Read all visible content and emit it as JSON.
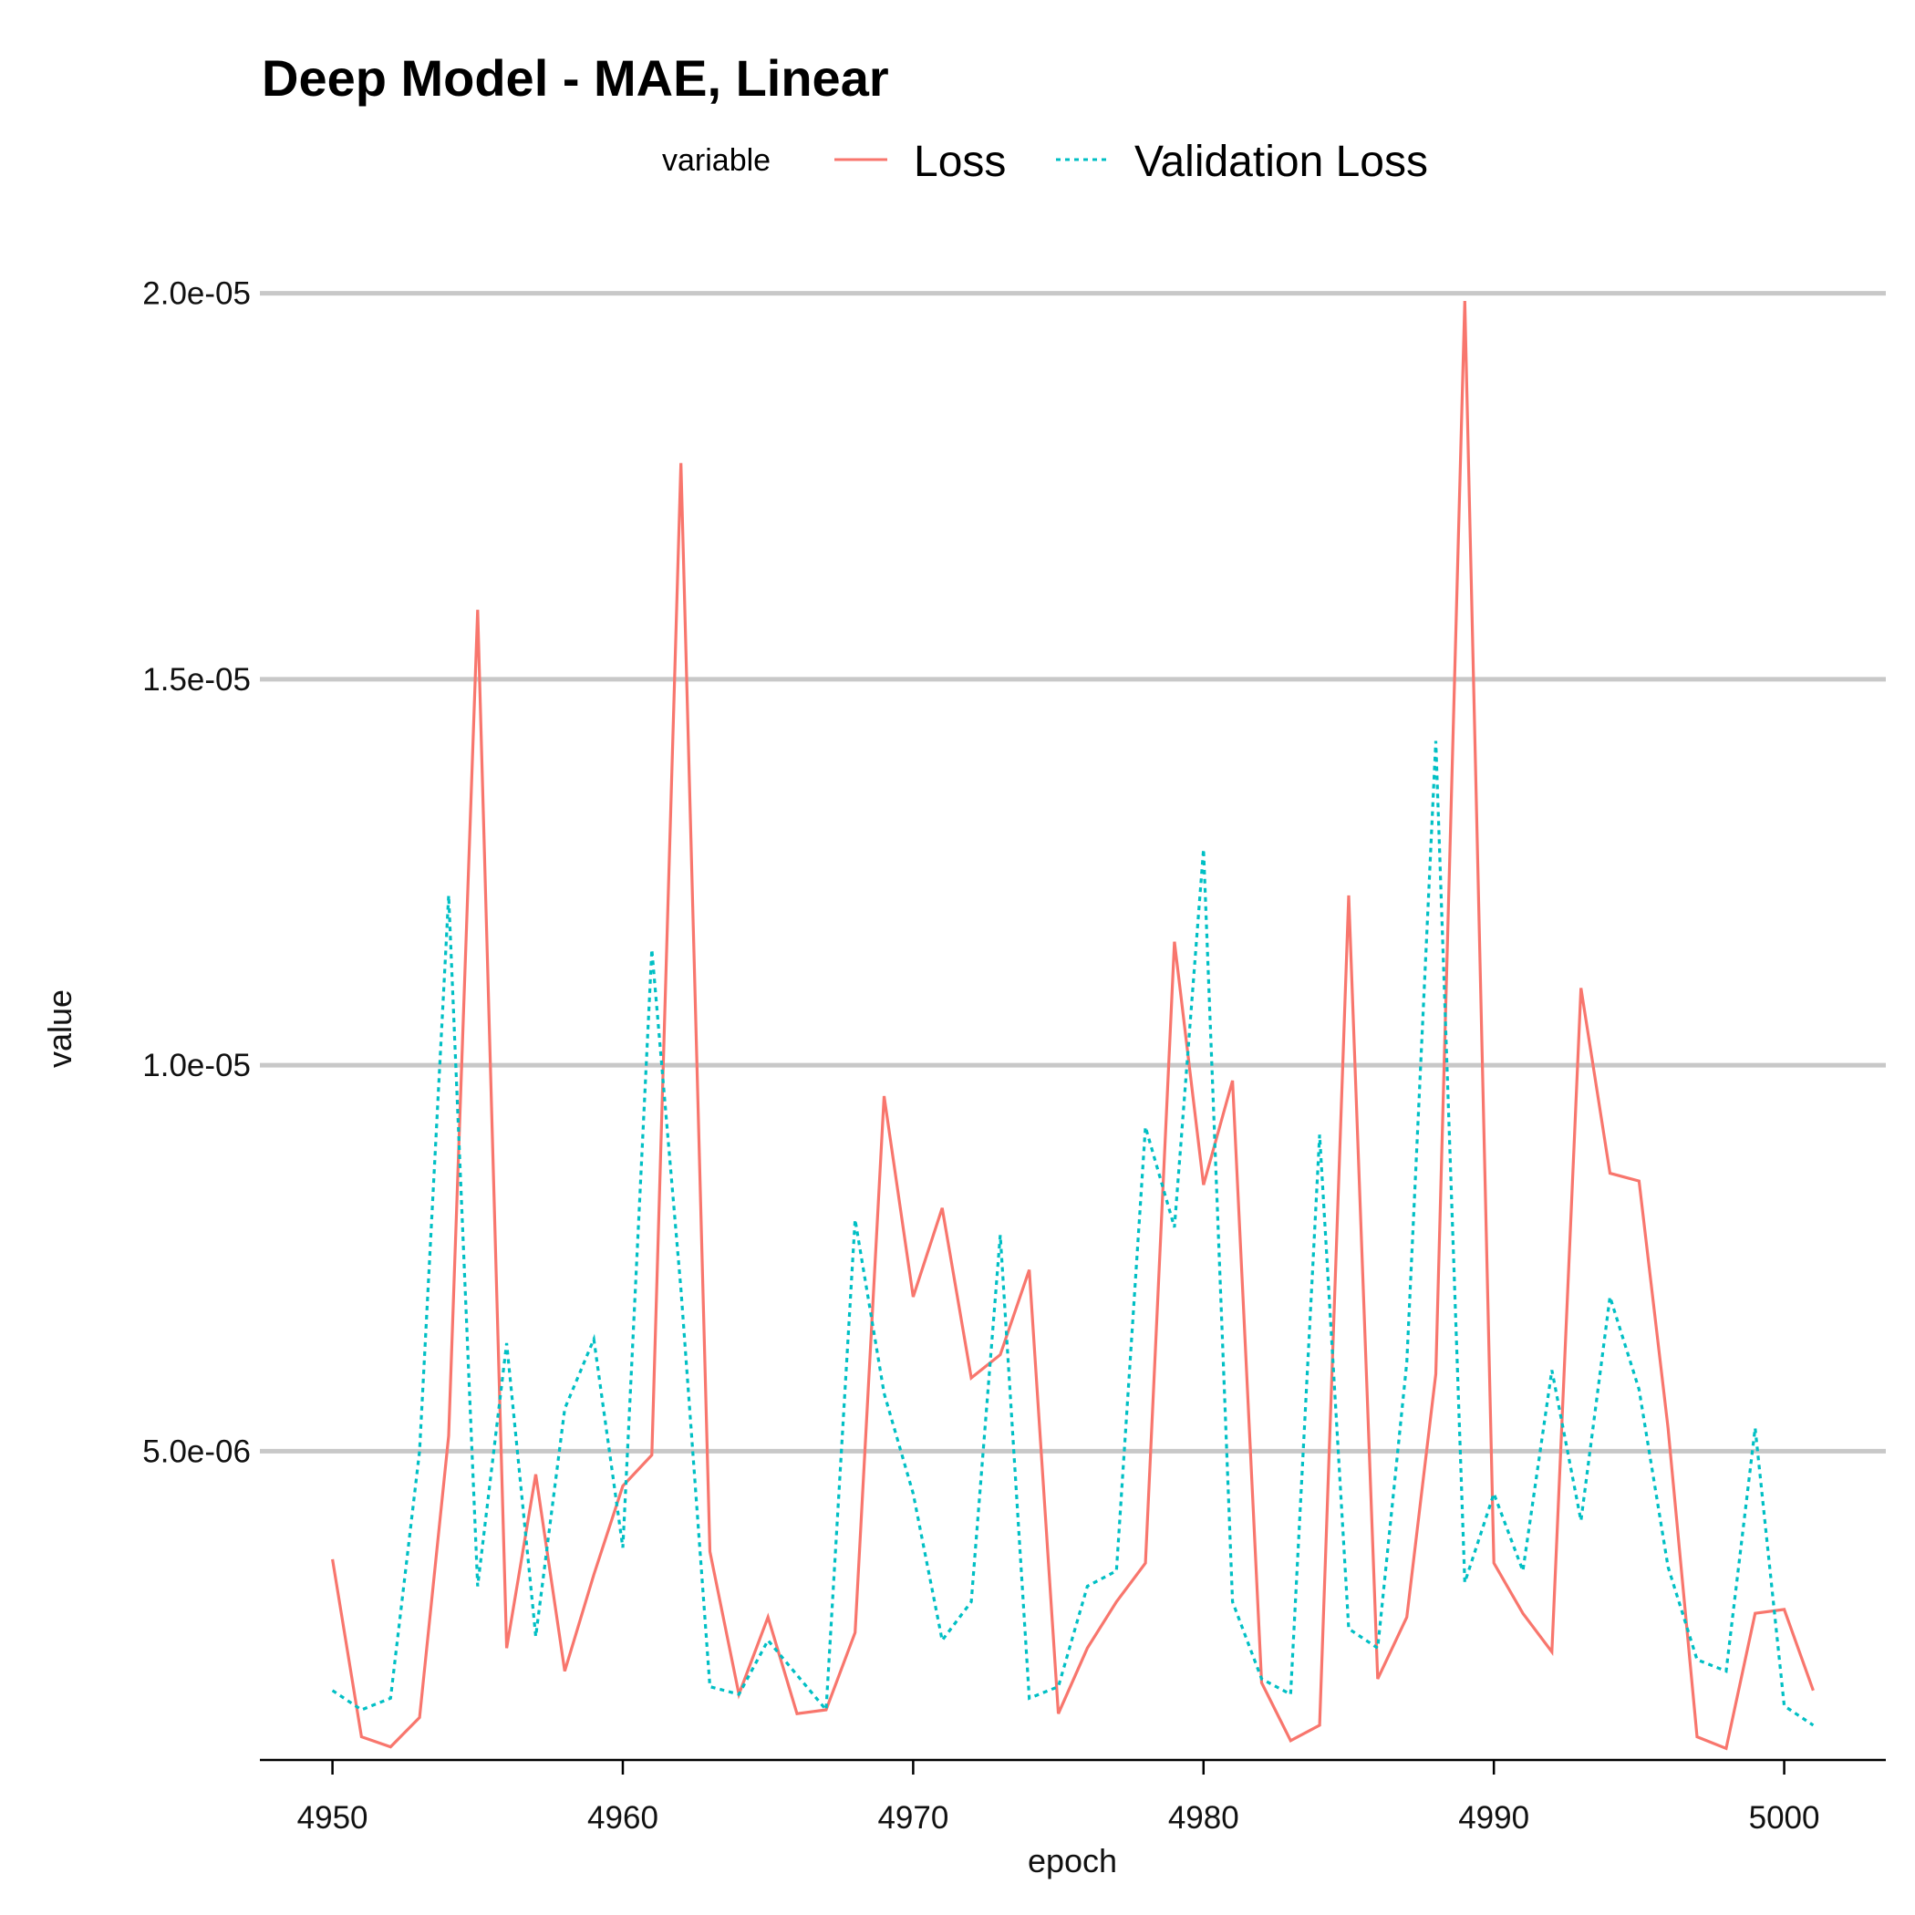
{
  "chart_data": {
    "type": "line",
    "title": "Deep Model - MAE, Linear",
    "xlabel": "epoch",
    "ylabel": "value",
    "xlim": [
      4947.5,
      5003.5
    ],
    "ylim": [
      1e-06,
      2.12e-05
    ],
    "x_ticks": [
      4950,
      4960,
      4970,
      4980,
      4990,
      5000
    ],
    "x_tick_labels": [
      "4950",
      "4960",
      "4970",
      "4980",
      "4990",
      "5000"
    ],
    "y_ticks": [
      5e-06,
      1e-05,
      1.5e-05,
      2e-05
    ],
    "y_tick_labels": [
      "5.0e-06",
      "1.0e-05",
      "1.5e-05",
      "2.0e-05"
    ],
    "grid": "horizontal",
    "legend": {
      "title": "variable",
      "position": "top"
    },
    "x": [
      4950,
      4951,
      4952,
      4953,
      4954,
      4955,
      4956,
      4957,
      4958,
      4959,
      4960,
      4961,
      4962,
      4963,
      4964,
      4965,
      4966,
      4967,
      4968,
      4969,
      4970,
      4971,
      4972,
      4973,
      4974,
      4975,
      4976,
      4977,
      4978,
      4979,
      4980,
      4981,
      4982,
      4983,
      4984,
      4985,
      4986,
      4987,
      4988,
      4989,
      4990,
      4991,
      4992,
      4993,
      4994,
      4995,
      4996,
      4997,
      4998,
      4999,
      5000,
      5001
    ],
    "series": [
      {
        "name": "Loss",
        "color": "#F8766D",
        "dash": "solid",
        "values": [
          3.6e-06,
          1.3e-06,
          1.17e-06,
          1.55e-06,
          5.2e-06,
          1.59e-05,
          2.45e-06,
          4.7e-06,
          2.15e-06,
          3.4e-06,
          4.55e-06,
          4.95e-06,
          1.78e-05,
          3.7e-06,
          1.85e-06,
          2.85e-06,
          1.6e-06,
          1.65e-06,
          2.65e-06,
          9.6e-06,
          7e-06,
          8.15e-06,
          5.95e-06,
          6.25e-06,
          7.35e-06,
          1.6e-06,
          2.45e-06,
          3.05e-06,
          3.55e-06,
          1.16e-05,
          8.45e-06,
          9.8e-06,
          2e-06,
          1.25e-06,
          1.45e-06,
          1.22e-05,
          2.05e-06,
          2.85e-06,
          6e-06,
          1.99e-05,
          3.55e-06,
          2.9e-06,
          2.4e-06,
          1.1e-05,
          8.6e-06,
          8.5e-06,
          5.3e-06,
          1.3e-06,
          1.15e-06,
          2.9e-06,
          2.95e-06,
          1.9e-06
        ]
      },
      {
        "name": "Validation Loss",
        "color": "#00BFC4",
        "dash": "dotted",
        "values": [
          1.9e-06,
          1.65e-06,
          1.8e-06,
          5e-06,
          1.22e-05,
          3.25e-06,
          6.4e-06,
          2.6e-06,
          5.55e-06,
          6.45e-06,
          3.75e-06,
          1.15e-05,
          7.1e-06,
          1.95e-06,
          1.85e-06,
          2.55e-06,
          2.1e-06,
          1.65e-06,
          8e-06,
          5.75e-06,
          4.45e-06,
          2.55e-06,
          3.05e-06,
          7.8e-06,
          1.8e-06,
          1.95e-06,
          3.25e-06,
          3.45e-06,
          9.2e-06,
          7.9e-06,
          1.28e-05,
          3.05e-06,
          2.05e-06,
          1.85e-06,
          9.1e-06,
          2.7e-06,
          2.45e-06,
          6.15e-06,
          1.42e-05,
          3.3e-06,
          4.45e-06,
          3.45e-06,
          6.05e-06,
          4.1e-06,
          7e-06,
          5.8e-06,
          3.5e-06,
          2.3e-06,
          2.15e-06,
          5.3e-06,
          1.7e-06,
          1.45e-06
        ]
      }
    ]
  }
}
